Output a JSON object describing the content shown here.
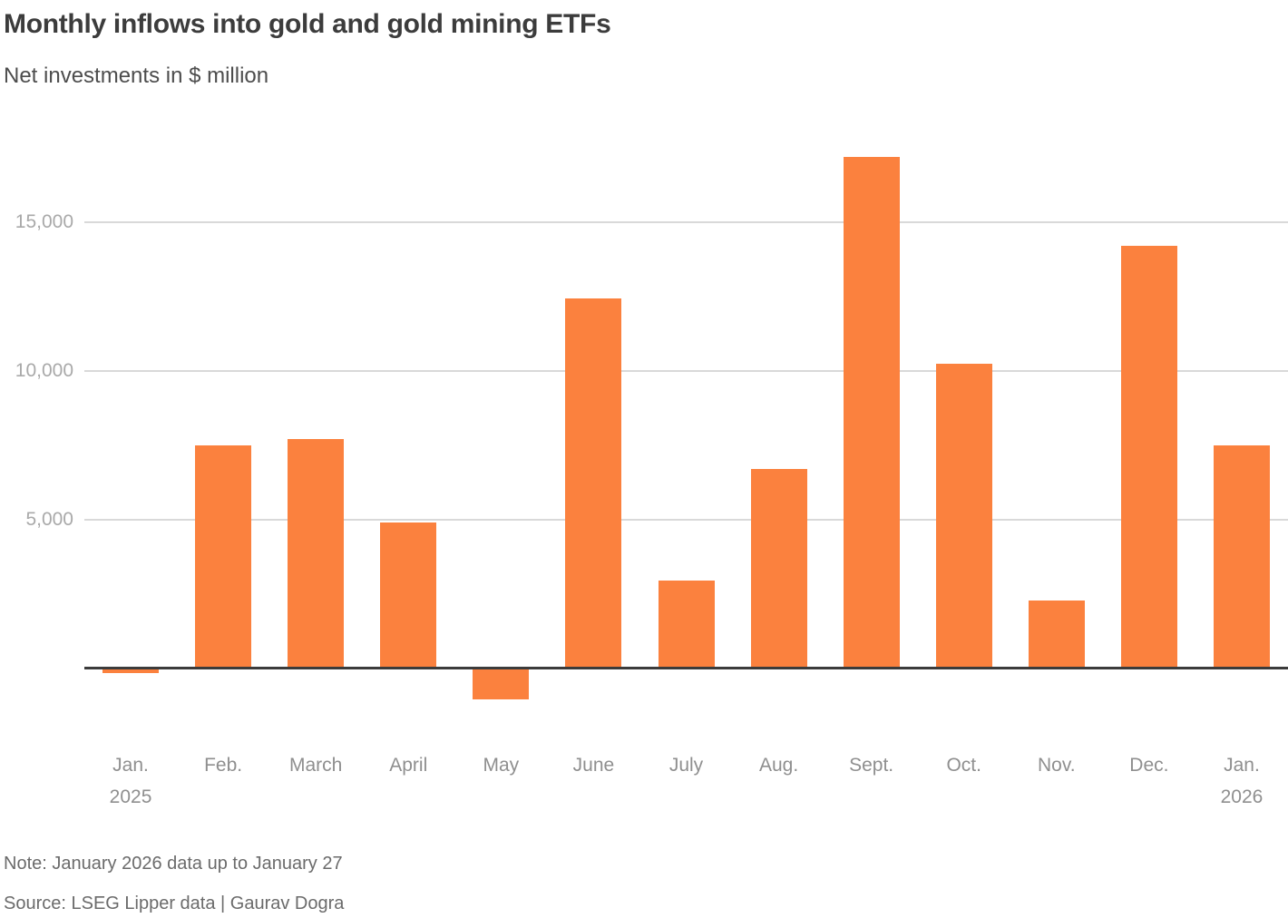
{
  "header": {
    "title": "Monthly inflows into gold and gold mining ETFs",
    "subtitle": "Net investments in $ million"
  },
  "chart_data": {
    "type": "bar",
    "title": "Monthly inflows into gold and gold mining ETFs",
    "subtitle": "Net investments in $ million",
    "xlabel": "",
    "ylabel": "Net investments in $ million",
    "categories": [
      "Jan. 2025",
      "Feb.",
      "March",
      "April",
      "May",
      "June",
      "July",
      "Aug.",
      "Sept.",
      "Oct.",
      "Nov.",
      "Dec.",
      "Jan. 2026"
    ],
    "x_ticks": [
      {
        "label": "Jan.",
        "sublabel": "2025"
      },
      {
        "label": "Feb.",
        "sublabel": ""
      },
      {
        "label": "March",
        "sublabel": ""
      },
      {
        "label": "April",
        "sublabel": ""
      },
      {
        "label": "May",
        "sublabel": ""
      },
      {
        "label": "June",
        "sublabel": ""
      },
      {
        "label": "July",
        "sublabel": ""
      },
      {
        "label": "Aug.",
        "sublabel": ""
      },
      {
        "label": "Sept.",
        "sublabel": ""
      },
      {
        "label": "Oct.",
        "sublabel": ""
      },
      {
        "label": "Nov.",
        "sublabel": ""
      },
      {
        "label": "Dec.",
        "sublabel": ""
      },
      {
        "label": "Jan.",
        "sublabel": "2026"
      }
    ],
    "values": [
      -150,
      7500,
      7700,
      4900,
      -1050,
      12450,
      2950,
      6700,
      17200,
      10250,
      2300,
      14200,
      7500
    ],
    "ytick_values": [
      5000,
      10000,
      15000
    ],
    "ytick_labels": [
      "5,000",
      "10,000",
      "15,000"
    ],
    "ylim": [
      -1500,
      17900
    ],
    "grid": "horizontal",
    "legend": "none"
  },
  "colors": {
    "bar": "#FB813E",
    "grid": "#D9D9D9",
    "baseline": "#3B3B3B",
    "title": "#3C3C3C",
    "subtitle": "#4D4D4D",
    "y_axis_label": "#A9A9A9",
    "x_axis_label": "#8F8F8F",
    "footnote": "#6B6B6B"
  },
  "footer": {
    "note": "Note: January 2026 data up to January 27",
    "source": "Source: LSEG Lipper data | Gaurav Dogra"
  }
}
